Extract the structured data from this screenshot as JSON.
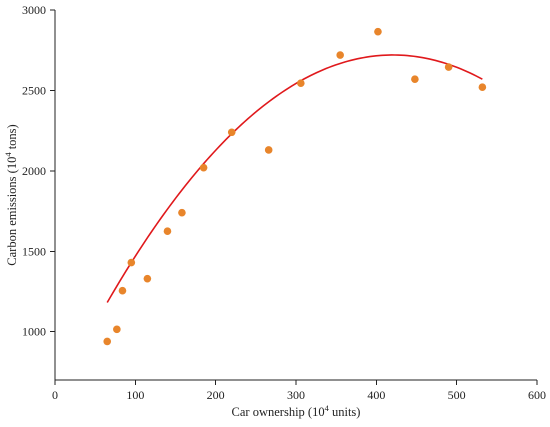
{
  "chart_data": {
    "type": "scatter",
    "xlabel_main": "Car ownership (10",
    "xlabel_sup": "4",
    "xlabel_tail": " units)",
    "ylabel_main": "Carbon emissions (10",
    "ylabel_sup": "4",
    "ylabel_tail": " tons)",
    "xlim": [
      0,
      600
    ],
    "ylim": [
      700,
      3000
    ],
    "xticks": [
      0,
      100,
      200,
      300,
      400,
      500,
      600
    ],
    "yticks": [
      1000,
      1500,
      2000,
      2500,
      3000
    ],
    "series": [
      {
        "points": [
          [
            65,
            940
          ],
          [
            77,
            1015
          ],
          [
            84,
            1255
          ],
          [
            95,
            1430
          ],
          [
            115,
            1330
          ],
          [
            140,
            1625
          ],
          [
            158,
            1740
          ],
          [
            185,
            2020
          ],
          [
            220,
            2240
          ],
          [
            266,
            2130
          ],
          [
            306,
            2545
          ],
          [
            355,
            2720
          ],
          [
            402,
            2865
          ],
          [
            448,
            2570
          ],
          [
            490,
            2645
          ],
          [
            532,
            2520
          ]
        ],
        "color": "#e8852b"
      }
    ],
    "fit_line": {
      "type": "quadratic",
      "x_range": [
        65,
        532
      ],
      "coefficients": {
        "a": -0.01216,
        "b": 10.232,
        "c": 568
      },
      "color": "#e0191c"
    },
    "grid": false,
    "legend": "none"
  }
}
